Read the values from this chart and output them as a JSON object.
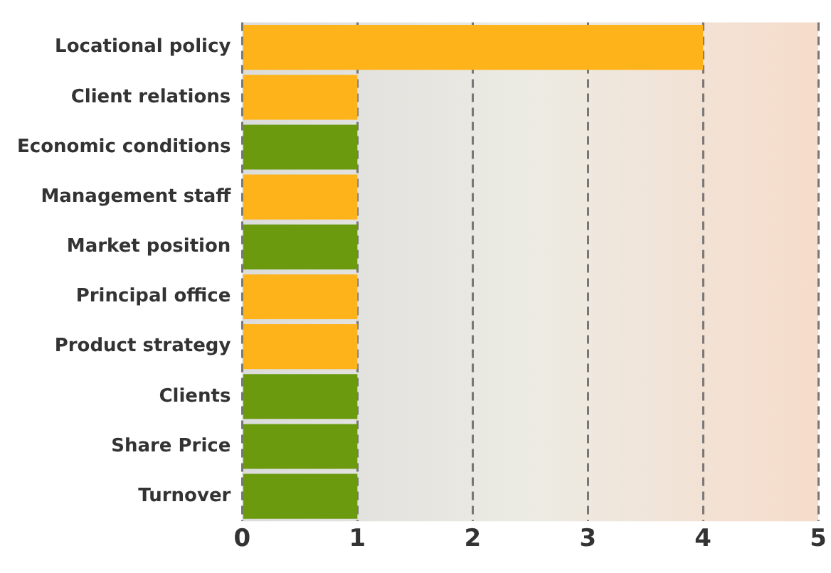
{
  "chart_data": {
    "type": "bar",
    "orientation": "horizontal",
    "categories": [
      "Locational policy",
      "Client relations",
      "Economic conditions",
      "Management staff",
      "Market position",
      "Principal office",
      "Product strategy",
      "Clients",
      "Share Price",
      "Turnover"
    ],
    "values": [
      4,
      1,
      1,
      1,
      1,
      1,
      1,
      1,
      1,
      1
    ],
    "colors": [
      "#ffb31a",
      "#ffb31a",
      "#6b9a0f",
      "#ffb31a",
      "#6b9a0f",
      "#ffb31a",
      "#ffb31a",
      "#6b9a0f",
      "#6b9a0f",
      "#6b9a0f"
    ],
    "xlim": [
      0,
      5
    ],
    "xticks": [
      0,
      1,
      2,
      3,
      4,
      5
    ],
    "grid": "x",
    "legend": false
  }
}
